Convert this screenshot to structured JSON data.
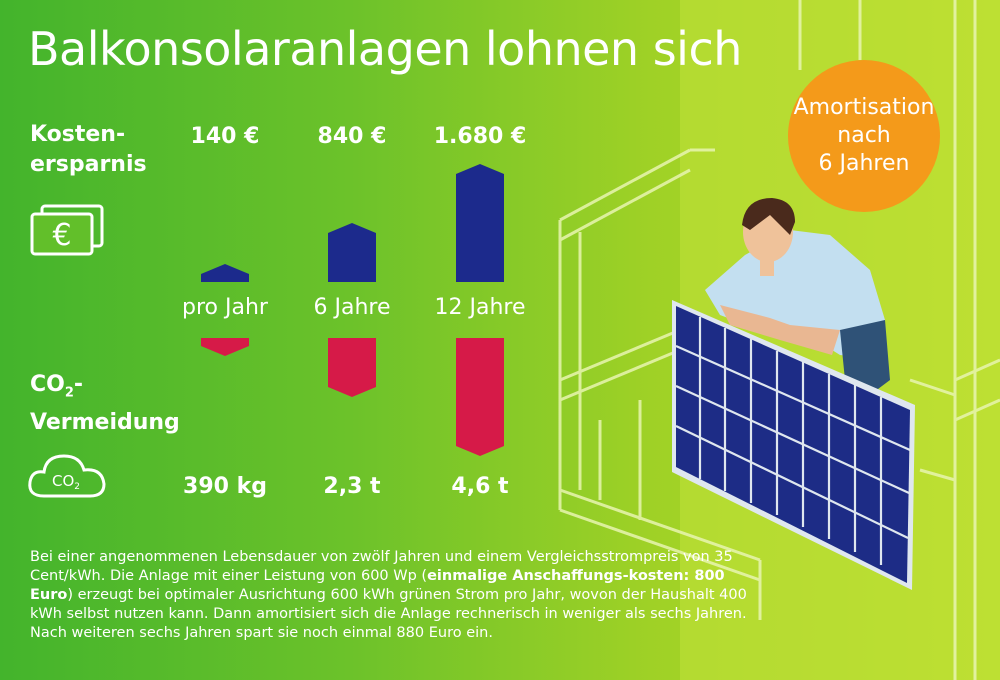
{
  "title": "Balkonsolaranlagen lohnen sich",
  "labels": {
    "cost_line1": "Kosten-",
    "cost_line2": "ersparnis",
    "co2_prefix": "CO",
    "co2_sub": "2",
    "co2_suffix": "-",
    "co2_line2": "Vermeidung",
    "cloud_text": "CO",
    "cloud_sub": "2",
    "euro_symbol": "€"
  },
  "badge": {
    "line1": "Amortisation",
    "line2": "nach",
    "line3": "6 Jahren"
  },
  "chart_data": {
    "type": "bar",
    "categories": [
      "pro Jahr",
      "6 Jahre",
      "12 Jahre"
    ],
    "series": [
      {
        "name": "Kostenersparnis",
        "values": [
          140,
          840,
          1680
        ],
        "unit": "€",
        "labels": [
          "140 €",
          "840 €",
          "1.680 €"
        ],
        "color": "#1c2a8c"
      },
      {
        "name": "CO2-Vermeidung",
        "values": [
          0.39,
          2.3,
          4.6
        ],
        "unit": "t",
        "labels": [
          "390 kg",
          "2,3 t",
          "4,6 t"
        ],
        "color": "#d61a48"
      }
    ],
    "title": "Balkonsolaranlagen lohnen sich"
  },
  "footnote": {
    "p1": "Bei einer angenommenen Lebensdauer von zwölf Jahren und einem Vergleichsstrompreis von 35 Cent/kWh. Die Anlage mit einer Leistung von 600 Wp (",
    "bold": "einmalige Anschaffungs-kosten: 800 Euro",
    "p2": ") erzeugt bei optimaler Ausrichtung 600 kWh grünen Strom pro Jahr, wovon der Haushalt 400 kWh selbst nutzen kann. Dann amortisiert sich die Anlage rechnerisch in weniger als sechs Jahren. Nach weiteren sechs Jahren spart sie noch einmal 880 Euro ein."
  },
  "colors": {
    "accent": "#f49a1a",
    "cost": "#1c2a8c",
    "co2": "#d61a48",
    "panel": "#1d2c86"
  }
}
